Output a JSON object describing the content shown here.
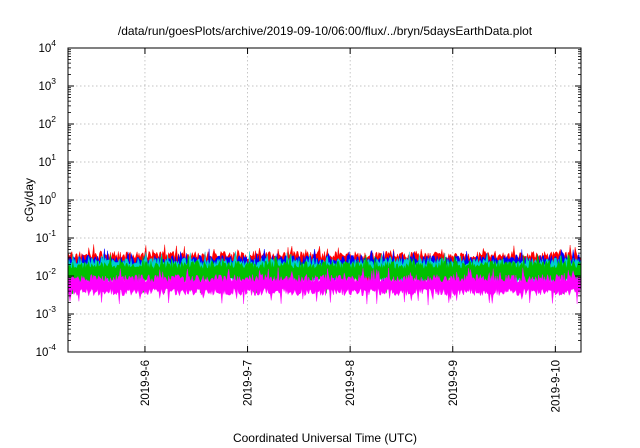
{
  "chart_data": {
    "type": "area",
    "title": "/data/run/goesPlots/archive/2019-09-10/06:00/flux/../bryn/5daysEarthData.plot",
    "xlabel": "Coordinated Universal Time (UTC)",
    "ylabel": "cGy/day",
    "y_scale": "log",
    "ylim": [
      0.0001,
      10000
    ],
    "xlim": [
      "2019-09-05T06:00",
      "2019-09-10T06:00"
    ],
    "grid": true,
    "x_ticks": [
      {
        "date": "2019-09-06T00:00",
        "label": "2019-9-6"
      },
      {
        "date": "2019-09-07T00:00",
        "label": "2019-9-7"
      },
      {
        "date": "2019-09-08T00:00",
        "label": "2019-9-8"
      },
      {
        "date": "2019-09-09T00:00",
        "label": "2019-9-9"
      },
      {
        "date": "2019-09-10T00:00",
        "label": "2019-9-10"
      }
    ],
    "y_ticks": [
      {
        "value": 0.0001,
        "base": "10",
        "exp": "-4"
      },
      {
        "value": 0.001,
        "base": "10",
        "exp": "-3"
      },
      {
        "value": 0.01,
        "base": "10",
        "exp": "-2"
      },
      {
        "value": 0.1,
        "base": "10",
        "exp": "-1"
      },
      {
        "value": 1,
        "base": "10",
        "exp": "0"
      },
      {
        "value": 10,
        "base": "10",
        "exp": "1"
      },
      {
        "value": 100,
        "base": "10",
        "exp": "2"
      },
      {
        "value": 1000,
        "base": "10",
        "exp": "3"
      },
      {
        "value": 10000,
        "base": "10",
        "exp": "4"
      }
    ],
    "series": [
      {
        "color": "#ff0000",
        "band": [
          0.012,
          0.045
        ]
      },
      {
        "color": "#0000ff",
        "band": [
          0.01,
          0.035
        ]
      },
      {
        "color": "#00cfcf",
        "band": [
          0.007,
          0.03
        ]
      },
      {
        "color": "#00c000",
        "band": [
          0.006,
          0.025
        ]
      },
      {
        "color": "#ff00ff",
        "band": [
          0.003,
          0.011
        ]
      }
    ]
  }
}
